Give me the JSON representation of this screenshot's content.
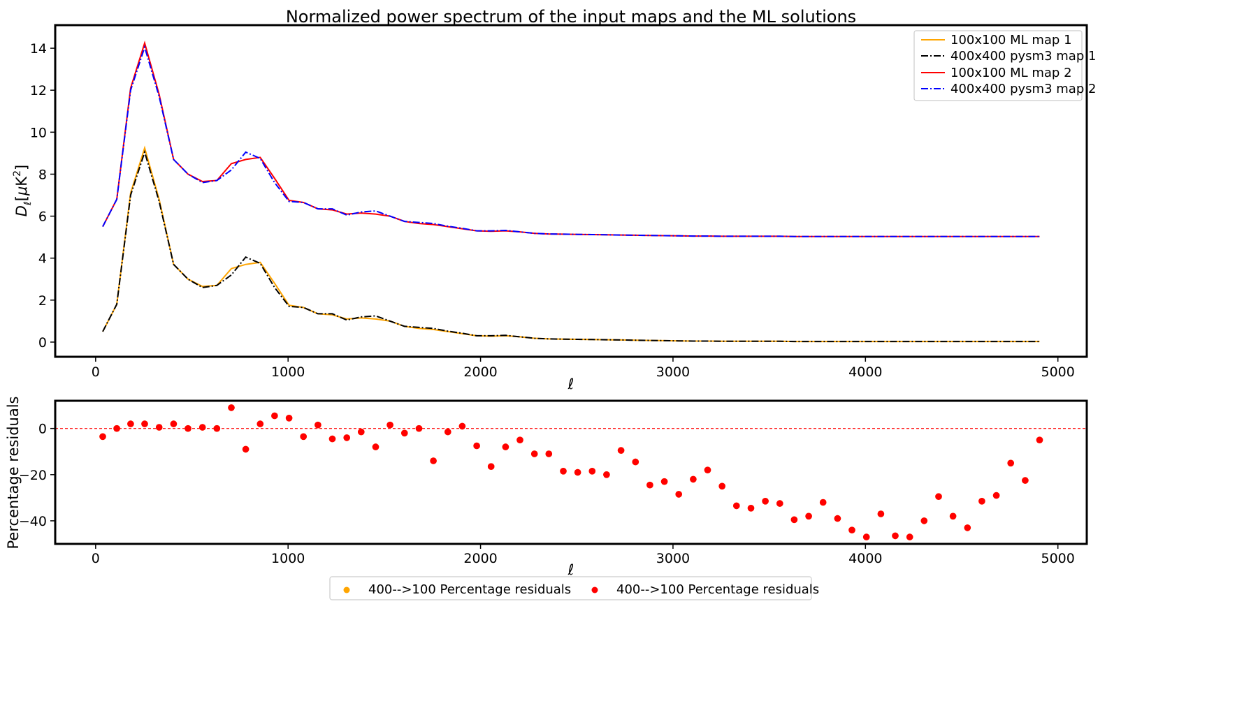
{
  "chart_data": [
    {
      "type": "line",
      "title": "Normalized power spectrum of the input maps and the ML solutions",
      "xlabel": "ℓ",
      "ylabel_main": "D",
      "ylabel_sub": "ℓ",
      "ylabel_bracket_open": "[",
      "ylabel_mu": "μ",
      "ylabel_unit": "K",
      "ylabel_sup": "2",
      "ylabel_bracket_close": "]",
      "xlim": [
        -210,
        5150
      ],
      "ylim": [
        -0.7,
        15.1
      ],
      "xticks": [
        0,
        1000,
        2000,
        3000,
        4000,
        5000
      ],
      "xticklabels": [
        "0",
        "1000",
        "2000",
        "3000",
        "4000",
        "5000"
      ],
      "yticks": [
        0,
        2,
        4,
        6,
        8,
        10,
        12,
        14
      ],
      "yticklabels": [
        "0",
        "2",
        "4",
        "6",
        "8",
        "10",
        "12",
        "14"
      ],
      "grid": false,
      "legend_position": "top-right",
      "x": [
        37,
        110,
        182,
        255,
        330,
        405,
        480,
        555,
        630,
        705,
        780,
        855,
        930,
        1005,
        1080,
        1155,
        1230,
        1305,
        1380,
        1455,
        1530,
        1605,
        1680,
        1755,
        1830,
        1905,
        1980,
        2055,
        2130,
        2205,
        2280,
        2355,
        2430,
        2505,
        2580,
        2655,
        2730,
        2805,
        2880,
        2955,
        3030,
        3105,
        3180,
        3255,
        3330,
        3405,
        3480,
        3555,
        3630,
        3705,
        3780,
        3855,
        3930,
        4005,
        4080,
        4155,
        4230,
        4305,
        4380,
        4455,
        4530,
        4605,
        4680,
        4755,
        4830,
        4905
      ],
      "series": [
        {
          "name": "100x100 ML map 1",
          "color": "#ffa500",
          "dash": "solid",
          "values": [
            0.5,
            1.8,
            7.1,
            9.25,
            6.8,
            3.7,
            3.0,
            2.65,
            2.7,
            3.5,
            3.7,
            3.8,
            2.8,
            1.75,
            1.65,
            1.35,
            1.3,
            1.1,
            1.15,
            1.1,
            1.0,
            0.75,
            0.65,
            0.6,
            0.5,
            0.4,
            0.3,
            0.28,
            0.3,
            0.25,
            0.18,
            0.15,
            0.14,
            0.13,
            0.12,
            0.11,
            0.1,
            0.09,
            0.08,
            0.07,
            0.06,
            0.05,
            0.05,
            0.04,
            0.04,
            0.04,
            0.04,
            0.04,
            0.03,
            0.03,
            0.03,
            0.03,
            0.03,
            0.03,
            0.03,
            0.03,
            0.03,
            0.03,
            0.03,
            0.03,
            0.03,
            0.03,
            0.03,
            0.03,
            0.03,
            0.03
          ]
        },
        {
          "name": "400x400 pysm3 map 1",
          "color": "#000000",
          "dash": "dashdot",
          "values": [
            0.5,
            1.8,
            7.0,
            9.05,
            6.7,
            3.7,
            3.0,
            2.6,
            2.7,
            3.2,
            4.05,
            3.75,
            2.6,
            1.7,
            1.65,
            1.35,
            1.35,
            1.05,
            1.2,
            1.25,
            1.0,
            0.75,
            0.7,
            0.65,
            0.52,
            0.42,
            0.3,
            0.3,
            0.32,
            0.25,
            0.18,
            0.15,
            0.14,
            0.13,
            0.12,
            0.11,
            0.1,
            0.09,
            0.08,
            0.07,
            0.06,
            0.05,
            0.05,
            0.04,
            0.04,
            0.04,
            0.04,
            0.04,
            0.03,
            0.03,
            0.03,
            0.03,
            0.03,
            0.03,
            0.03,
            0.03,
            0.03,
            0.03,
            0.03,
            0.03,
            0.03,
            0.03,
            0.03,
            0.03,
            0.03,
            0.03
          ]
        },
        {
          "name": "100x100 ML map 2",
          "color": "#ff0000",
          "dash": "solid",
          "values": [
            5.5,
            6.8,
            12.1,
            14.25,
            11.8,
            8.7,
            8.0,
            7.65,
            7.7,
            8.5,
            8.7,
            8.8,
            7.8,
            6.75,
            6.65,
            6.35,
            6.3,
            6.1,
            6.15,
            6.1,
            6.0,
            5.75,
            5.65,
            5.6,
            5.5,
            5.4,
            5.3,
            5.28,
            5.3,
            5.25,
            5.18,
            5.15,
            5.14,
            5.13,
            5.12,
            5.11,
            5.1,
            5.09,
            5.08,
            5.07,
            5.06,
            5.05,
            5.05,
            5.04,
            5.04,
            5.04,
            5.04,
            5.04,
            5.03,
            5.03,
            5.03,
            5.03,
            5.03,
            5.03,
            5.03,
            5.03,
            5.03,
            5.03,
            5.03,
            5.03,
            5.03,
            5.03,
            5.03,
            5.03,
            5.03,
            5.03
          ]
        },
        {
          "name": "400x400 pysm3 map 2",
          "color": "#0000ff",
          "dash": "dashdot",
          "values": [
            5.5,
            6.8,
            12.0,
            14.05,
            11.7,
            8.7,
            8.0,
            7.6,
            7.7,
            8.2,
            9.05,
            8.75,
            7.6,
            6.7,
            6.65,
            6.35,
            6.35,
            6.05,
            6.2,
            6.25,
            6.0,
            5.75,
            5.7,
            5.65,
            5.52,
            5.42,
            5.3,
            5.3,
            5.32,
            5.25,
            5.18,
            5.15,
            5.14,
            5.13,
            5.12,
            5.11,
            5.1,
            5.09,
            5.08,
            5.07,
            5.06,
            5.05,
            5.05,
            5.04,
            5.04,
            5.04,
            5.04,
            5.04,
            5.03,
            5.03,
            5.03,
            5.03,
            5.03,
            5.03,
            5.03,
            5.03,
            5.03,
            5.03,
            5.03,
            5.03,
            5.03,
            5.03,
            5.03,
            5.03,
            5.03,
            5.03
          ]
        }
      ]
    },
    {
      "type": "scatter",
      "title": "",
      "xlabel": "ℓ",
      "ylabel": "Percentage residuals",
      "xlim": [
        -210,
        5150
      ],
      "ylim": [
        -50,
        12
      ],
      "xticks": [
        0,
        1000,
        2000,
        3000,
        4000,
        5000
      ],
      "xticklabels": [
        "0",
        "1000",
        "2000",
        "3000",
        "4000",
        "5000"
      ],
      "yticks": [
        -40,
        -20,
        0
      ],
      "yticklabels": [
        "−40",
        "−20",
        "0"
      ],
      "grid": false,
      "reference_line": {
        "y": 0,
        "color": "#ff0000",
        "style": "dashed"
      },
      "legend_position": "bottom-center",
      "x": [
        37,
        110,
        182,
        255,
        330,
        405,
        480,
        555,
        630,
        705,
        780,
        855,
        930,
        1005,
        1080,
        1155,
        1230,
        1305,
        1380,
        1455,
        1530,
        1605,
        1680,
        1755,
        1830,
        1905,
        1980,
        2055,
        2130,
        2205,
        2280,
        2355,
        2430,
        2505,
        2580,
        2655,
        2730,
        2805,
        2880,
        2955,
        3030,
        3105,
        3180,
        3255,
        3330,
        3405,
        3480,
        3555,
        3630,
        3705,
        3780,
        3855,
        3930,
        4005,
        4080,
        4155,
        4230,
        4305,
        4380,
        4455,
        4530,
        4605,
        4680,
        4755,
        4830,
        4905
      ],
      "series": [
        {
          "name": "400-->100 Percentage residuals",
          "color": "#ffa500",
          "values": [
            -3.5,
            0.0,
            2.0,
            2.0,
            0.5,
            2.0,
            0.0,
            0.5,
            0.0,
            9.0,
            -9.0,
            2.0,
            5.5,
            4.5,
            -3.5,
            1.5,
            -4.5,
            -4.0,
            -1.5,
            -8.0,
            1.5,
            -2.0,
            0.0,
            -14.0,
            -1.5,
            1.0,
            -7.5,
            -16.5,
            -8.0,
            -5.0,
            -11.0,
            -11.0,
            -18.5,
            -19.0,
            -18.5,
            -20.0,
            -9.5,
            -14.5,
            -24.5,
            -23.0,
            -28.5,
            -22.0,
            -18.0,
            -25.0,
            -33.5,
            -34.5,
            -31.5,
            -32.5,
            -39.5,
            -38.0,
            -32.0,
            -39.0,
            -44.0,
            -47.0,
            -37.0,
            -46.5,
            -47.0,
            -40.0,
            -29.5,
            -38.0,
            -43.0,
            -31.5,
            -29.0,
            -15.0,
            -22.5,
            -5.0
          ]
        },
        {
          "name": "400-->100 Percentage residuals",
          "color": "#ff0000",
          "values": [
            -3.5,
            0.0,
            2.0,
            2.0,
            0.5,
            2.0,
            0.0,
            0.5,
            0.0,
            9.0,
            -9.0,
            2.0,
            5.5,
            4.5,
            -3.5,
            1.5,
            -4.5,
            -4.0,
            -1.5,
            -8.0,
            1.5,
            -2.0,
            0.0,
            -14.0,
            -1.5,
            1.0,
            -7.5,
            -16.5,
            -8.0,
            -5.0,
            -11.0,
            -11.0,
            -18.5,
            -19.0,
            -18.5,
            -20.0,
            -9.5,
            -14.5,
            -24.5,
            -23.0,
            -28.5,
            -22.0,
            -18.0,
            -25.0,
            -33.5,
            -34.5,
            -31.5,
            -32.5,
            -39.5,
            -38.0,
            -32.0,
            -39.0,
            -44.0,
            -47.0,
            -37.0,
            -46.5,
            -47.0,
            -40.0,
            -29.5,
            -38.0,
            -43.0,
            -31.5,
            -29.0,
            -15.0,
            -22.5,
            -5.0
          ]
        }
      ]
    }
  ]
}
